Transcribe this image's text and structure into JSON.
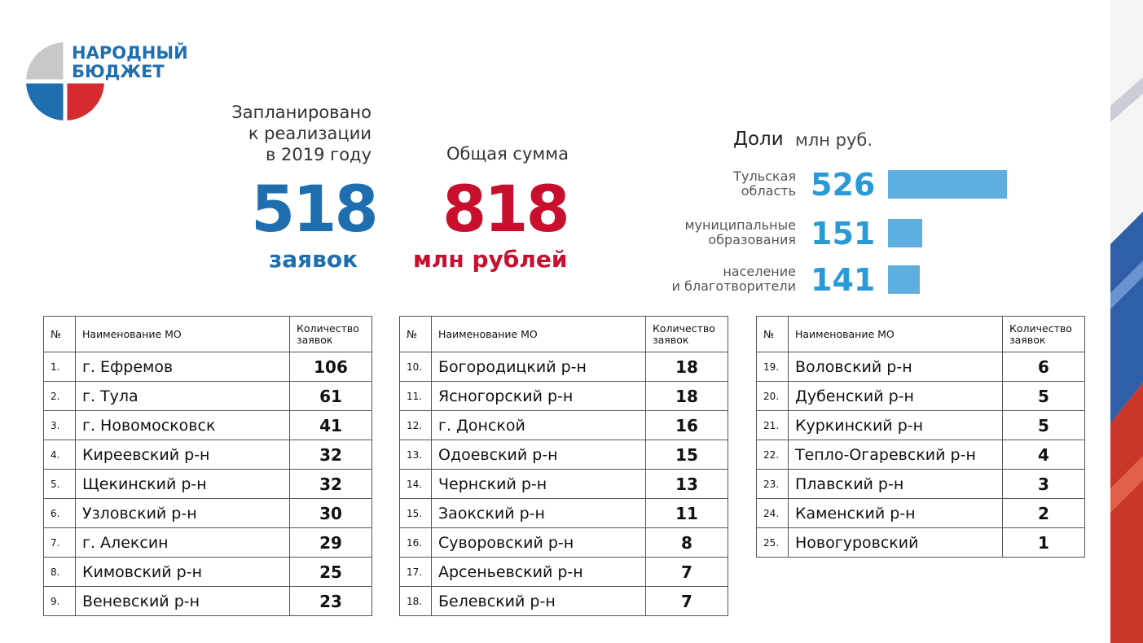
{
  "logo": {
    "line1": "НАРОДНЫЙ",
    "line2": "БЮДЖЕТ"
  },
  "planned": {
    "label_lines": [
      "Запланировано",
      "к реализации",
      "в 2019 году"
    ],
    "value": 518,
    "unit": "заявок"
  },
  "total": {
    "label": "Общая сумма",
    "value": 818,
    "unit": "млн рублей"
  },
  "shares": {
    "title": "Доли",
    "unit": "млн руб.",
    "items": [
      {
        "label_lines": [
          "Тульская",
          "область"
        ],
        "value": 526
      },
      {
        "label_lines": [
          "муниципальные",
          "образования"
        ],
        "value": 151
      },
      {
        "label_lines": [
          "население",
          "и благотворители"
        ],
        "value": 141
      }
    ]
  },
  "tables": [
    {
      "header": [
        "№",
        "Наименование МО",
        "Количество заявок"
      ],
      "rows": [
        [
          "1.",
          "г. Ефремов",
          106
        ],
        [
          "2.",
          "г. Тула",
          61
        ],
        [
          "3.",
          "г. Новомосковск",
          41
        ],
        [
          "4.",
          "Киреевский р-н",
          32
        ],
        [
          "5.",
          "Щекинский р-н",
          32
        ],
        [
          "6.",
          "Узловский р-н",
          30
        ],
        [
          "7.",
          "г. Алексин",
          29
        ],
        [
          "8.",
          "Кимовский р-н",
          25
        ],
        [
          "9.",
          "Веневский р-н",
          23
        ]
      ]
    },
    {
      "header": [
        "№",
        "Наименование МО",
        "Количество заявок"
      ],
      "rows": [
        [
          "10.",
          "Богородицкий р-н",
          18
        ],
        [
          "11.",
          "Ясногорский р-н",
          18
        ],
        [
          "12.",
          "г. Донской",
          16
        ],
        [
          "13.",
          "Одоевский р-н",
          15
        ],
        [
          "14.",
          "Чернский р-н",
          13
        ],
        [
          "15.",
          "Заокский р-н",
          11
        ],
        [
          "16.",
          "Суворовский р-н",
          8
        ],
        [
          "17.",
          "Арсеньевский р-н",
          7
        ],
        [
          "18.",
          "Белевский р-н",
          7
        ]
      ]
    },
    {
      "header": [
        "№",
        "Наименование МО",
        "Количество заявок"
      ],
      "rows": [
        [
          "19.",
          "Воловский р-н",
          6
        ],
        [
          "20.",
          "Дубенский р-н",
          5
        ],
        [
          "21.",
          "Куркинский р-н",
          5
        ],
        [
          "22.",
          "Тепло-Огаревский р-н",
          4
        ],
        [
          "23.",
          "Плавский р-н",
          3
        ],
        [
          "24.",
          "Каменский р-н",
          2
        ],
        [
          "25.",
          "Новогуровский",
          1
        ]
      ]
    }
  ]
}
